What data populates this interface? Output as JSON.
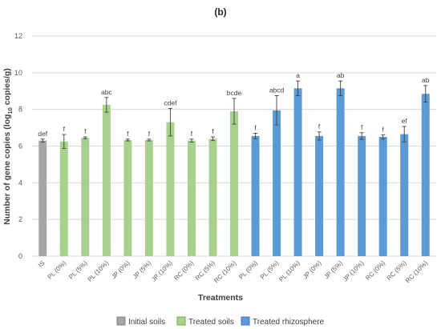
{
  "chart_data": {
    "type": "bar",
    "panel_label": "(b)",
    "xlabel": "Treatments",
    "ylabel_parts": {
      "pre": "Number of gene copies (log",
      "sub": "10",
      "post": " copies/g)"
    },
    "ylim": [
      0,
      12
    ],
    "yticks": [
      0,
      2,
      4,
      6,
      8,
      10,
      12
    ],
    "grid": "horizontal",
    "legend_position": "bottom",
    "groups": [
      {
        "name": "Initial soils",
        "color": "#a6a6a6"
      },
      {
        "name": "Treated soils",
        "color": "#a9d18e"
      },
      {
        "name": "Treated rhizosphere",
        "color": "#5b9bd5"
      }
    ],
    "legend_swatch_colors": [
      "#7f7f7f",
      "#70ad47",
      "#4472c4"
    ],
    "categories": [
      "IS",
      "PL (0%)",
      "PL (5%)",
      "PL (10%)",
      "JP (0%)",
      "JP (5%)",
      "JP (10%)",
      "RC (0%)",
      "RC (5%)",
      "RC (10%)",
      "PL (0%)",
      "PL (5%)",
      "PL (10%)",
      "JP (0%)",
      "JP (5%)",
      "JP (10%)",
      "RC (0%)",
      "RC (5%)",
      "RC (10%)"
    ],
    "group_index": [
      0,
      1,
      1,
      1,
      1,
      1,
      1,
      1,
      1,
      1,
      2,
      2,
      2,
      2,
      2,
      2,
      2,
      2,
      2
    ],
    "values": [
      6.3,
      6.25,
      6.45,
      8.25,
      6.33,
      6.33,
      7.3,
      6.3,
      6.4,
      7.9,
      6.55,
      7.95,
      9.15,
      6.55,
      9.15,
      6.55,
      6.5,
      6.65,
      8.85
    ],
    "errors": [
      0.08,
      0.38,
      0.05,
      0.4,
      0.05,
      0.05,
      0.75,
      0.08,
      0.1,
      0.7,
      0.15,
      0.8,
      0.4,
      0.22,
      0.4,
      0.18,
      0.12,
      0.42,
      0.45
    ],
    "significance": [
      "def",
      "f",
      "f",
      "abc",
      "f",
      "f",
      "cdef",
      "f",
      "f",
      "bcde",
      "f",
      "abcd",
      "a",
      "f",
      "ab",
      "f",
      "f",
      "ef",
      "ab"
    ]
  }
}
